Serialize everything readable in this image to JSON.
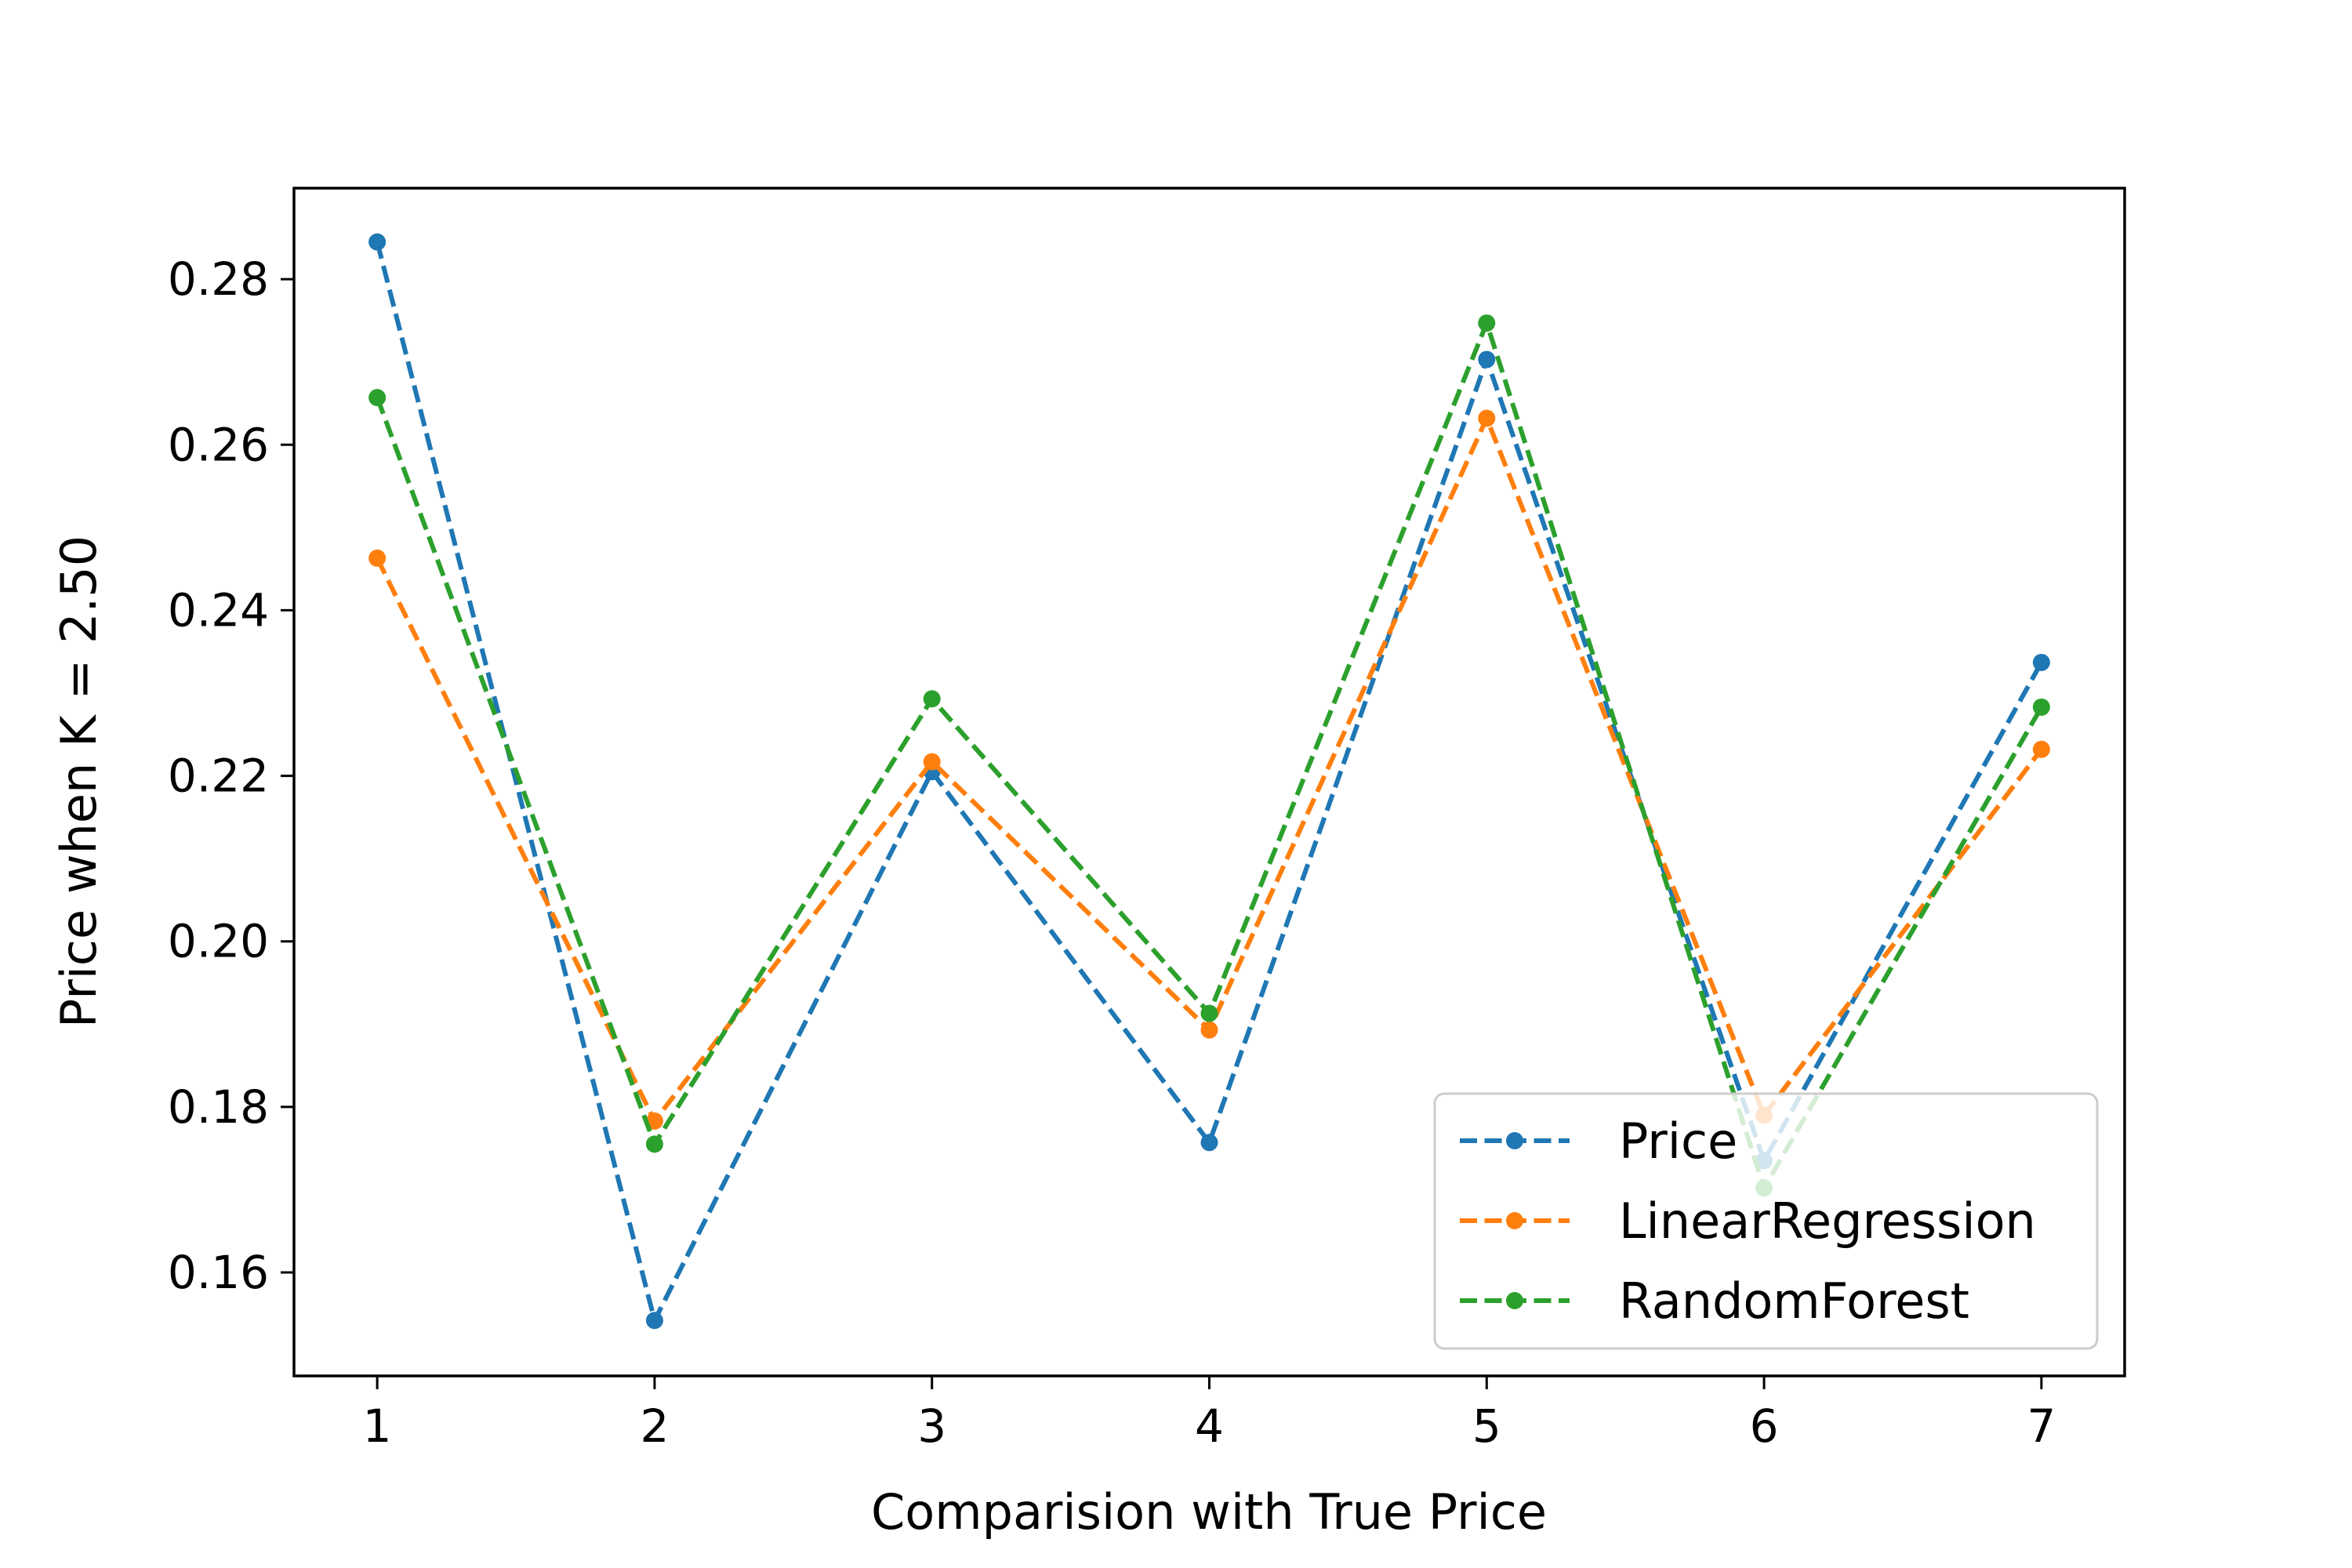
{
  "chart_data": {
    "type": "line",
    "title": "",
    "xlabel": "Comparision with True Price",
    "ylabel": "Price when K = 2.50",
    "x": [
      1,
      2,
      3,
      4,
      5,
      6,
      7
    ],
    "xticks": [
      "1",
      "2",
      "3",
      "4",
      "5",
      "6",
      "7"
    ],
    "yticks": [
      "0.16",
      "0.18",
      "0.20",
      "0.22",
      "0.24",
      "0.26",
      "0.28"
    ],
    "xlim": [
      0.7,
      7.3
    ],
    "ylim": [
      0.1475,
      0.291
    ],
    "grid": false,
    "legend_position": "lower-right",
    "line_style": "dashed",
    "marker": "dot",
    "series": [
      {
        "name": "Price",
        "color": "#1f77b4",
        "values": [
          0.2845,
          0.1542,
          0.2205,
          0.1757,
          0.2703,
          0.1735,
          0.2337
        ]
      },
      {
        "name": "LinearRegression",
        "color": "#ff7f0e",
        "values": [
          0.2463,
          0.1783,
          0.2217,
          0.1893,
          0.2632,
          0.179,
          0.2232
        ]
      },
      {
        "name": "RandomForest",
        "color": "#2ca02c",
        "values": [
          0.2657,
          0.1755,
          0.2293,
          0.1913,
          0.2747,
          0.1702,
          0.2283
        ]
      }
    ]
  }
}
